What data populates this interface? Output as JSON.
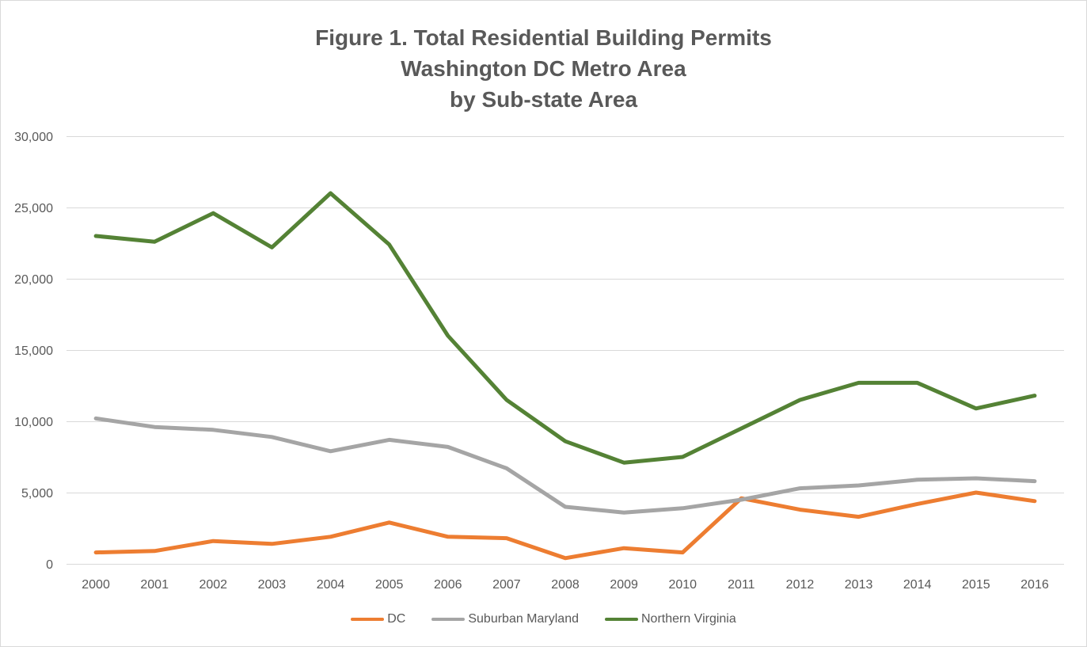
{
  "chart_data": {
    "type": "line",
    "title": [
      "Figure 1. Total Residential Building Permits",
      "Washington DC Metro Area",
      "by Sub-state Area"
    ],
    "categories": [
      "2000",
      "2001",
      "2002",
      "2003",
      "2004",
      "2005",
      "2006",
      "2007",
      "2008",
      "2009",
      "2010",
      "2011",
      "2012",
      "2013",
      "2014",
      "2015",
      "2016"
    ],
    "ylim": [
      0,
      30000
    ],
    "yticks": [
      0,
      5000,
      10000,
      15000,
      20000,
      25000,
      30000
    ],
    "ytick_labels": [
      "0",
      "5,000",
      "10,000",
      "15,000",
      "20,000",
      "25,000",
      "30,000"
    ],
    "grid": {
      "horizontal": true,
      "vertical": false
    },
    "legend": {
      "position": "bottom"
    },
    "series": [
      {
        "name": "DC",
        "color": "#ED7D31",
        "values": [
          800,
          900,
          1600,
          1400,
          1900,
          2900,
          1900,
          1800,
          400,
          1100,
          800,
          4600,
          3800,
          3300,
          4200,
          5000,
          4400
        ]
      },
      {
        "name": "Suburban Maryland",
        "color": "#A5A5A5",
        "values": [
          10200,
          9600,
          9400,
          8900,
          7900,
          8700,
          8200,
          6700,
          4000,
          3600,
          3900,
          4500,
          5300,
          5500,
          5900,
          6000,
          5800
        ]
      },
      {
        "name": "Northern Virginia",
        "color": "#548235",
        "values": [
          23000,
          22600,
          24600,
          22200,
          26000,
          22400,
          16000,
          11500,
          8600,
          7100,
          7500,
          9500,
          11500,
          12700,
          12700,
          10900,
          11800
        ]
      }
    ]
  },
  "colors": {
    "text": "#595959",
    "grid": "#D9D9D9",
    "border": "#D9D9D9",
    "background": "#FFFFFF"
  }
}
